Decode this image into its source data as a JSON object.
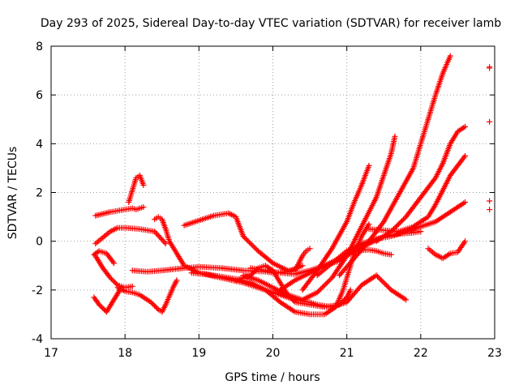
{
  "chart_data": {
    "type": "scatter",
    "title": "Day 293 of 2025, Sidereal Day-to-day VTEC variation (SDTVAR) for receiver lamb",
    "xlabel": "GPS time / hours",
    "ylabel": "SDTVAR / TECUs",
    "xlim": [
      17,
      23
    ],
    "ylim": [
      -4,
      8
    ],
    "xticks": [
      17,
      18,
      19,
      20,
      21,
      22,
      23
    ],
    "yticks": [
      -4,
      -2,
      0,
      2,
      4,
      6,
      8
    ],
    "x_tick_labels": [
      "17",
      "18",
      "19",
      "20",
      "21",
      "22",
      "23"
    ],
    "y_tick_labels": [
      "-4",
      "-2",
      "0",
      "2",
      "4",
      "6",
      "8"
    ],
    "grid": true,
    "marker": "plus",
    "color": "#ff0000",
    "series": [
      {
        "name": "s1",
        "x": [
          17.6,
          17.8,
          18.0,
          18.1,
          18.15,
          18.2,
          18.25
        ],
        "y": [
          1.05,
          1.2,
          1.3,
          1.35,
          1.3,
          1.35,
          1.4
        ]
      },
      {
        "name": "s2",
        "x": [
          18.05,
          18.1,
          18.15,
          18.2,
          18.25
        ],
        "y": [
          1.6,
          2.1,
          2.6,
          2.7,
          2.3
        ]
      },
      {
        "name": "s3",
        "x": [
          17.6,
          17.7,
          17.8,
          17.9,
          18.0,
          18.2,
          18.4,
          18.55
        ],
        "y": [
          -0.1,
          0.15,
          0.4,
          0.55,
          0.55,
          0.5,
          0.4,
          -0.1
        ]
      },
      {
        "name": "s4",
        "x": [
          17.58,
          17.65,
          17.75,
          17.85
        ],
        "y": [
          -0.55,
          -0.4,
          -0.5,
          -0.9
        ]
      },
      {
        "name": "s5",
        "x": [
          17.58,
          17.65,
          17.75,
          17.85,
          17.95
        ],
        "y": [
          -2.3,
          -2.6,
          -2.9,
          -2.4,
          -1.9
        ]
      },
      {
        "name": "s6",
        "x": [
          17.9,
          18.0,
          18.1,
          18.2,
          18.35,
          18.45,
          18.5,
          18.55,
          18.65,
          18.7
        ],
        "y": [
          -1.9,
          -2.05,
          -2.1,
          -2.2,
          -2.5,
          -2.8,
          -2.9,
          -2.6,
          -1.9,
          -1.6
        ]
      },
      {
        "name": "s7",
        "x": [
          17.6,
          17.7,
          17.8,
          17.9,
          18.0,
          18.1
        ],
        "y": [
          -0.6,
          -1.1,
          -1.5,
          -1.8,
          -1.9,
          -1.85
        ]
      },
      {
        "name": "s8",
        "x": [
          18.1,
          18.3,
          18.5,
          18.8,
          19.0,
          19.3,
          19.6,
          19.9,
          20.0,
          20.2,
          20.4
        ],
        "y": [
          -1.2,
          -1.25,
          -1.2,
          -1.1,
          -1.05,
          -1.1,
          -1.2,
          -1.25,
          -1.3,
          -1.25,
          -1.0
        ]
      },
      {
        "name": "s9",
        "x": [
          18.4,
          18.45,
          18.5,
          18.55,
          18.6,
          18.7,
          18.8,
          19.0,
          19.3,
          19.6,
          19.9,
          20.1,
          20.3,
          20.5,
          20.6,
          20.8,
          21.0,
          21.2,
          21.4,
          21.6,
          21.8
        ],
        "y": [
          0.9,
          1.0,
          0.9,
          0.5,
          0.0,
          -0.5,
          -1.0,
          -1.3,
          -1.5,
          -1.7,
          -2.0,
          -2.2,
          -2.4,
          -2.5,
          -2.6,
          -2.7,
          -2.5,
          -1.8,
          -1.4,
          -2.0,
          -2.4
        ]
      },
      {
        "name": "s10",
        "x": [
          18.8,
          19.0,
          19.2,
          19.3,
          19.4,
          19.5,
          19.6,
          19.8,
          20.0,
          20.2,
          20.3,
          20.35,
          20.4,
          20.45,
          20.5
        ],
        "y": [
          0.65,
          0.85,
          1.05,
          1.1,
          1.15,
          1.0,
          0.2,
          -0.4,
          -0.9,
          -1.2,
          -1.2,
          -0.9,
          -0.6,
          -0.4,
          -0.3
        ]
      },
      {
        "name": "s11",
        "x": [
          18.9,
          19.1,
          19.3,
          19.5,
          19.7,
          19.9,
          20.1,
          20.3,
          20.5,
          20.7,
          20.85,
          20.95,
          21.1,
          21.2,
          21.3
        ],
        "y": [
          -1.3,
          -1.35,
          -1.45,
          -1.55,
          -1.7,
          -2.0,
          -2.5,
          -2.9,
          -3.0,
          -3.0,
          -2.7,
          -2.0,
          -0.5,
          0.2,
          0.7
        ]
      },
      {
        "name": "s12",
        "x": [
          19.5,
          19.7,
          19.8,
          19.9,
          20.0,
          20.1,
          20.2,
          20.3,
          20.5,
          20.7,
          20.9,
          21.0,
          21.05
        ],
        "y": [
          -1.6,
          -1.4,
          -1.1,
          -1.0,
          -1.2,
          -1.7,
          -2.2,
          -2.5,
          -2.6,
          -2.7,
          -2.6,
          -2.3,
          -2.0
        ]
      },
      {
        "name": "s13",
        "x": [
          19.6,
          19.8,
          20.0,
          20.2,
          20.4,
          20.6,
          20.8,
          21.0,
          21.2,
          21.4,
          21.5,
          21.6,
          21.65
        ],
        "y": [
          -1.4,
          -1.6,
          -1.9,
          -2.2,
          -2.4,
          -2.1,
          -1.5,
          -0.6,
          0.6,
          1.8,
          2.7,
          3.6,
          4.3
        ]
      },
      {
        "name": "s14",
        "x": [
          19.7,
          19.9,
          20.1,
          20.3,
          20.5,
          20.7,
          20.9,
          21.1,
          21.3,
          21.4,
          21.5,
          21.6
        ],
        "y": [
          -1.1,
          -1.2,
          -1.3,
          -1.35,
          -1.2,
          -1.0,
          -0.8,
          -0.4,
          -0.35,
          -0.4,
          -0.5,
          -0.55
        ]
      },
      {
        "name": "s15",
        "x": [
          20.1,
          20.3,
          20.5,
          20.7,
          20.9,
          21.1,
          21.3,
          21.5,
          21.7,
          21.9,
          22.0
        ],
        "y": [
          -2.0,
          -1.6,
          -1.3,
          -1.0,
          -0.7,
          -0.4,
          -0.1,
          0.2,
          0.3,
          0.35,
          0.4
        ]
      },
      {
        "name": "s16",
        "x": [
          20.4,
          20.6,
          20.8,
          21.0,
          21.1,
          21.2,
          21.3
        ],
        "y": [
          -2.0,
          -1.2,
          -0.3,
          0.8,
          1.6,
          2.3,
          3.1
        ]
      },
      {
        "name": "s17",
        "x": [
          20.6,
          20.8,
          21.0,
          21.2,
          21.4,
          21.6,
          21.8,
          22.0,
          22.2,
          22.4,
          22.5,
          22.6
        ],
        "y": [
          -1.4,
          -0.9,
          -0.4,
          -0.1,
          0.1,
          0.2,
          0.4,
          0.6,
          0.8,
          1.2,
          1.4,
          1.6
        ]
      },
      {
        "name": "s18",
        "x": [
          20.9,
          21.1,
          21.3,
          21.5,
          21.7,
          21.9,
          22.0,
          22.1,
          22.2,
          22.3,
          22.4
        ],
        "y": [
          -1.4,
          -0.7,
          0.0,
          0.8,
          1.9,
          3.0,
          4.0,
          5.0,
          6.0,
          6.9,
          7.6
        ]
      },
      {
        "name": "s19",
        "x": [
          21.3,
          21.5,
          21.7,
          21.8,
          21.9,
          22.0,
          22.1,
          22.2,
          22.3,
          22.4,
          22.5,
          22.6
        ],
        "y": [
          0.5,
          0.45,
          0.4,
          0.5,
          0.6,
          0.8,
          1.0,
          1.5,
          2.1,
          2.7,
          3.1,
          3.5
        ]
      },
      {
        "name": "s20",
        "x": [
          21.4,
          21.6,
          21.8,
          22.0,
          22.1,
          22.2,
          22.3,
          22.4,
          22.5,
          22.6
        ],
        "y": [
          0.0,
          0.4,
          1.0,
          1.8,
          2.2,
          2.6,
          3.2,
          4.0,
          4.5,
          4.7
        ]
      },
      {
        "name": "s21",
        "x": [
          22.1,
          22.2,
          22.3,
          22.4,
          22.5,
          22.6
        ],
        "y": [
          -0.3,
          -0.55,
          -0.7,
          -0.5,
          -0.45,
          0.0
        ]
      },
      {
        "name": "s22",
        "x": [
          22.93,
          22.93,
          22.93,
          22.93,
          22.93
        ],
        "y": [
          7.15,
          4.9,
          1.65,
          1.3,
          7.1
        ]
      }
    ]
  }
}
